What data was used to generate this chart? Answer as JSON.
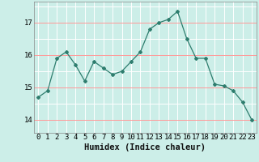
{
  "x": [
    0,
    1,
    2,
    3,
    4,
    5,
    6,
    7,
    8,
    9,
    10,
    11,
    12,
    13,
    14,
    15,
    16,
    17,
    18,
    19,
    20,
    21,
    22,
    23
  ],
  "y": [
    14.7,
    14.9,
    15.9,
    16.1,
    15.7,
    15.2,
    15.8,
    15.6,
    15.4,
    15.5,
    15.8,
    16.1,
    16.8,
    17.0,
    17.1,
    17.35,
    16.5,
    15.9,
    15.9,
    15.1,
    15.05,
    14.9,
    14.55,
    14.0
  ],
  "xlabel": "Humidex (Indice chaleur)",
  "xlim": [
    -0.5,
    23.5
  ],
  "ylim": [
    13.6,
    17.65
  ],
  "yticks": [
    14,
    15,
    16,
    17
  ],
  "xticks": [
    0,
    1,
    2,
    3,
    4,
    5,
    6,
    7,
    8,
    9,
    10,
    11,
    12,
    13,
    14,
    15,
    16,
    17,
    18,
    19,
    20,
    21,
    22,
    23
  ],
  "line_color": "#2e7d6e",
  "marker": "D",
  "markersize": 2.0,
  "bg_color": "#cceee8",
  "grid_color": "#ffffff",
  "red_line_color": "#ff8888",
  "xlabel_fontsize": 7.5,
  "tick_fontsize": 6.5
}
